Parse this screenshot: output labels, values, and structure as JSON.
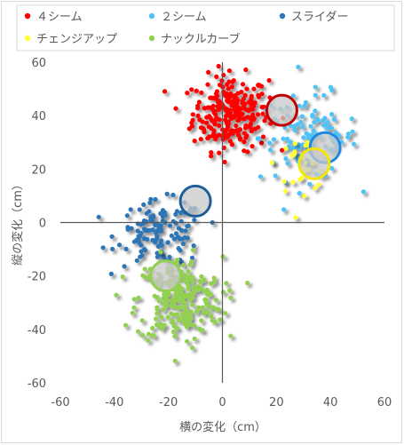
{
  "chart_data": {
    "type": "scatter",
    "title": "",
    "xlabel": "横の変化（cm）",
    "ylabel": "縦の変化（cm）",
    "xlim": [
      -60,
      60
    ],
    "ylim": [
      -60,
      60
    ],
    "x_ticks": [
      -60,
      -40,
      -20,
      0,
      20,
      40,
      60
    ],
    "y_ticks": [
      -60,
      -40,
      -20,
      0,
      20,
      40,
      60
    ],
    "grid": false,
    "legend_position": "top",
    "series": [
      {
        "name": "４シーム",
        "color": "#ff0000",
        "center": [
          3,
          41
        ],
        "spread": [
          7,
          7
        ],
        "n": 260,
        "average_circle": {
          "x": 22,
          "y": 42,
          "color": "#c00000"
        }
      },
      {
        "name": "２シーム",
        "color": "#4fc3f7",
        "center": [
          32,
          32
        ],
        "spread": [
          9,
          8
        ],
        "n": 110,
        "average_circle": {
          "x": 38,
          "y": 28,
          "color": "#1e88e5"
        }
      },
      {
        "name": "スライダー",
        "color": "#2e75b6",
        "center": [
          -23,
          -4
        ],
        "spread": [
          8,
          6
        ],
        "n": 130,
        "average_circle": {
          "x": -10,
          "y": 8,
          "color": "#1f5f99"
        }
      },
      {
        "name": "チェンジアップ",
        "color": "#ffff33",
        "center": [
          30,
          22
        ],
        "spread": [
          5,
          5
        ],
        "n": 30,
        "average_circle": {
          "x": 34,
          "y": 22,
          "color": "#f5e600"
        }
      },
      {
        "name": "ナックルカーブ",
        "color": "#92d050",
        "center": [
          -16,
          -29
        ],
        "spread": [
          8,
          8
        ],
        "n": 230,
        "average_circle": {
          "x": -21,
          "y": -20,
          "color": "#92d050"
        }
      }
    ]
  }
}
